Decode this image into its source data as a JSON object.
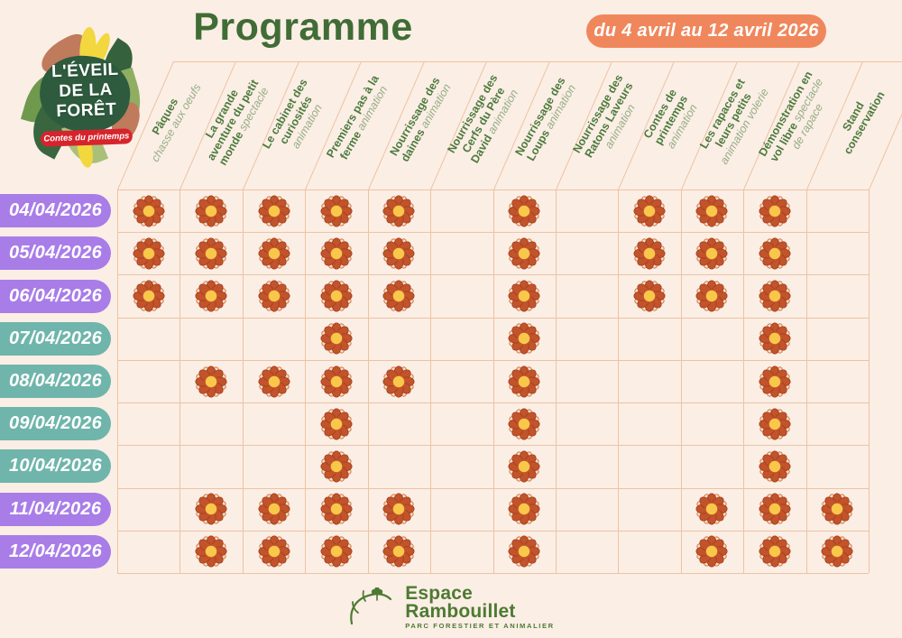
{
  "event_logo": {
    "line1": "L'ÉVEIL",
    "line2": "DE LA",
    "line3": "FORÊT",
    "subtitle": "Contes du printemps"
  },
  "header": {
    "title": "Programme",
    "date_range_badge": "du 4 avril au 12 avril 2026"
  },
  "schedule": {
    "columns": [
      {
        "id": "paques",
        "lines": [
          [
            {
              "t": "Pâques",
              "light": false
            }
          ],
          [
            {
              "t": "chasse aux oeufs",
              "light": true
            }
          ]
        ]
      },
      {
        "id": "grande-aventure-petit-monde",
        "lines": [
          [
            {
              "t": "La grande",
              "light": false
            }
          ],
          [
            {
              "t": "aventure du petit",
              "light": false
            }
          ],
          [
            {
              "t": "monde ",
              "light": false
            },
            {
              "t": "spectacle",
              "light": true
            }
          ]
        ]
      },
      {
        "id": "cabinet-des-curiosites",
        "lines": [
          [
            {
              "t": "Le cabinet des",
              "light": false
            }
          ],
          [
            {
              "t": "curiosités",
              "light": false
            }
          ],
          [
            {
              "t": "animation",
              "light": true
            }
          ]
        ]
      },
      {
        "id": "premiers-pas-a-la-ferme",
        "lines": [
          [
            {
              "t": "Premiers pas à la",
              "light": false
            }
          ],
          [
            {
              "t": "ferme ",
              "light": false
            },
            {
              "t": "animation",
              "light": true
            }
          ]
        ]
      },
      {
        "id": "nourrissage-daines",
        "lines": [
          [
            {
              "t": "Nourrissage des",
              "light": false
            }
          ],
          [
            {
              "t": "daines ",
              "light": false
            },
            {
              "t": "animation",
              "light": true
            }
          ]
        ]
      },
      {
        "id": "nourrissage-cerfs-pere-david",
        "lines": [
          [
            {
              "t": "Nourrissage des",
              "light": false
            }
          ],
          [
            {
              "t": "Cerfs du Père",
              "light": false
            }
          ],
          [
            {
              "t": "David ",
              "light": false
            },
            {
              "t": "animation",
              "light": true
            }
          ]
        ]
      },
      {
        "id": "nourrissage-loups",
        "lines": [
          [
            {
              "t": "Nourrissage des",
              "light": false
            }
          ],
          [
            {
              "t": "Loups ",
              "light": false
            },
            {
              "t": "animation",
              "light": true
            }
          ]
        ]
      },
      {
        "id": "nourrissage-ratons-laveurs",
        "lines": [
          [
            {
              "t": "Nourrissage des",
              "light": false
            }
          ],
          [
            {
              "t": "Ratons Laveurs",
              "light": false
            }
          ],
          [
            {
              "t": "animation",
              "light": true
            }
          ]
        ]
      },
      {
        "id": "contes-de-printemps",
        "lines": [
          [
            {
              "t": "Contes de",
              "light": false
            }
          ],
          [
            {
              "t": "printemps",
              "light": false
            }
          ],
          [
            {
              "t": "animation",
              "light": true
            }
          ]
        ]
      },
      {
        "id": "rapaces-et-leurs-petits",
        "lines": [
          [
            {
              "t": "Les rapaces et",
              "light": false
            }
          ],
          [
            {
              "t": "leurs petits",
              "light": false
            }
          ],
          [
            {
              "t": "animation volerie",
              "light": true
            }
          ]
        ]
      },
      {
        "id": "demonstration-vol-libre",
        "lines": [
          [
            {
              "t": "Démonstration en",
              "light": false
            }
          ],
          [
            {
              "t": "vol libre ",
              "light": false
            },
            {
              "t": "spectacle",
              "light": true
            }
          ],
          [
            {
              "t": "de rapace",
              "light": true
            }
          ]
        ]
      },
      {
        "id": "stand-conservation",
        "lines": [
          [
            {
              "t": "Stand",
              "light": false
            }
          ],
          [
            {
              "t": "conservation",
              "light": false
            }
          ]
        ]
      }
    ],
    "rows": [
      {
        "date": "04/04/2026",
        "color": "purple",
        "marks": [
          1,
          2,
          3,
          4,
          5,
          7,
          9,
          10,
          11
        ]
      },
      {
        "date": "05/04/2026",
        "color": "purple",
        "marks": [
          1,
          2,
          3,
          4,
          5,
          7,
          9,
          10,
          11
        ]
      },
      {
        "date": "06/04/2026",
        "color": "purple",
        "marks": [
          1,
          2,
          3,
          4,
          5,
          7,
          9,
          10,
          11
        ]
      },
      {
        "date": "07/04/2026",
        "color": "teal",
        "marks": [
          4,
          7,
          11
        ]
      },
      {
        "date": "08/04/2026",
        "color": "teal",
        "marks": [
          2,
          3,
          4,
          5,
          7,
          11
        ]
      },
      {
        "date": "09/04/2026",
        "color": "teal",
        "marks": [
          4,
          7,
          11
        ]
      },
      {
        "date": "10/04/2026",
        "color": "teal",
        "marks": [
          4,
          7,
          11
        ]
      },
      {
        "date": "11/04/2026",
        "color": "purple",
        "marks": [
          2,
          3,
          4,
          5,
          7,
          10,
          11,
          12
        ]
      },
      {
        "date": "12/04/2026",
        "color": "purple",
        "marks": [
          2,
          3,
          4,
          5,
          7,
          10,
          11,
          12
        ]
      }
    ]
  },
  "footer": {
    "brand_line1": "Espace",
    "brand_line2": "Rambouillet",
    "tagline": "PARC FORESTIER ET ANIMALIER"
  },
  "colors": {
    "background": "#fbeee5",
    "grid_line": "#edc3a2",
    "title_green": "#406c36",
    "header_bold_green": "#4c7a3c",
    "header_light_green": "#96ad86",
    "purple": "#a97de7",
    "teal": "#6fb5ab",
    "badge_orange": "#f0875c",
    "flower_petal": "#c2532b",
    "flower_petal_back": "#f6ddc6",
    "flower_center": "#f9c84a",
    "logo_red": "#d6242c",
    "footer_green": "#4d7a33"
  }
}
